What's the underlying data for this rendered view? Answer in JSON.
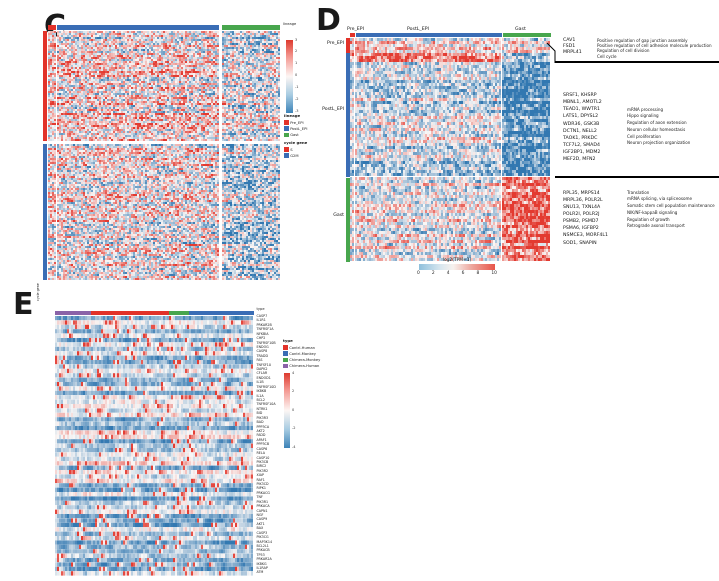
{
  "colors": {
    "anno_red": "#e23229",
    "anno_blue": "#3a6db5",
    "anno_green": "#48a64d",
    "anno_purple": "#8a63a8",
    "heat_red": "#e43c34",
    "heat_blue": "#347ab2"
  },
  "panel_c": {
    "label": "C",
    "top_bar_label": "lineage",
    "bottom_row_label": "cycle gene",
    "colorbar_ticks": [
      "3",
      "2",
      "1",
      "0",
      "-1",
      "-2",
      "-3"
    ],
    "legend_lineage": {
      "title": "lineage",
      "items": [
        {
          "label": "Pre_EPI",
          "color": "#e23229"
        },
        {
          "label": "PostL_EPI",
          "color": "#3a6db5"
        },
        {
          "label": "Gast",
          "color": "#48a64d"
        }
      ]
    },
    "legend_cycle": {
      "title": "cycle gene",
      "items": [
        {
          "label": "S",
          "color": "#e23229"
        },
        {
          "label": "G2M",
          "color": "#3a6db5"
        }
      ]
    }
  },
  "panel_d": {
    "label": "D",
    "col_labels": [
      "Pre_EPI",
      "PostL_EPI",
      "Gast"
    ],
    "row_labels": [
      "Pre_EPI",
      "PostL_EPI",
      "Gast"
    ],
    "colorbar": {
      "title": "log2(TPM+1)",
      "ticks": [
        "0",
        "2",
        "4",
        "6",
        "8",
        "10"
      ]
    },
    "groups": [
      {
        "genes": [
          "CAV1",
          "FSD1",
          "MRPL41"
        ],
        "terms": [
          "Positive regulation of gap junction assembly",
          "Positive regulation of cell adhesion molecule production",
          "Regulation of cell division",
          "Cell cycle"
        ]
      },
      {
        "genes": [
          "SRSF1, KHSRP",
          "MBNL1, AMOTL2",
          "TEAD1, WWTR1",
          "LATS1, DPYSL2",
          "WDR36, GSK3B",
          "DCTN1, NELL2",
          "TAOK1, PRKDC",
          "TCF7L2, SMAD4",
          "IGF2BP1, MDM2",
          "MEF2D, MFN2"
        ],
        "terms": [
          "mRNA processing",
          "Hippo signaling",
          "Regulation of axon extension",
          "Neuron cellular homeostasis",
          "Cell proliferation",
          "Neuron projection organization"
        ]
      },
      {
        "genes": [
          "RPL35, MRPS14",
          "MRPL36, POLR2L",
          "SNU13, TXNL4A",
          "POLR2I, POLR2J",
          "PSMB2, PSMD7",
          "PSMA6, IGFBP2",
          "NSMCE3, MORF4L1",
          "SOD1, SNAPIN"
        ],
        "terms": [
          "Translation",
          "mRNA splicing, via spliceosome",
          "Somatic stem cell population maintenance",
          "NIK/NF-kappaB signaling",
          "Regulation of growth",
          "Retrograde axonal transport"
        ]
      }
    ]
  },
  "panel_e": {
    "label": "E",
    "top_bar_label": "type",
    "colorbar_ticks": [
      "4",
      "2",
      "0",
      "-2",
      "-4"
    ],
    "legend": {
      "title": "type",
      "items": [
        {
          "label": "Contrl-Human",
          "color": "#e23229"
        },
        {
          "label": "Contrl-Monkey",
          "color": "#3a6db5"
        },
        {
          "label": "Chimera-Monkey",
          "color": "#48a64d"
        },
        {
          "label": "Chimera-Human",
          "color": "#8a63a8"
        }
      ]
    },
    "genes": [
      "CASP7",
      "IL1R1",
      "PRKAR2B",
      "TNFRSF1A",
      "NFKBIA",
      "CHP2",
      "TNFRSF10B",
      "ENDOG",
      "CASP8",
      "TRADD",
      "FAS",
      "TNFSF10",
      "DAPK2",
      "CFLAR",
      "ENDOD1",
      "IL1B",
      "TNFRSF10D",
      "IKBKB",
      "IL1A",
      "BCL2",
      "TNFRSF10A",
      "NTRK1",
      "BID",
      "PIK3R3",
      "BAD",
      "PPP3CA",
      "AKT2",
      "FADD",
      "APAF1",
      "PPP3CB",
      "CASP6",
      "RELA",
      "CASP10",
      "PIK3CB",
      "BIRC2",
      "PIK3R2",
      "XIAP",
      "RAF1",
      "PIK3CD",
      "RIPK1",
      "PRKACG",
      "TNF",
      "PIK3R1",
      "PRKACA",
      "CAPN1",
      "NGF",
      "CASP9",
      "AKT1",
      "BAX",
      "CASP3",
      "PIK3CG",
      "MAP3K14",
      "BCL2L1",
      "PRKACB",
      "TP53",
      "PRKAR2A",
      "IKBKG",
      "IL1RAP",
      "ATM"
    ]
  },
  "chart_data": [
    {
      "id": "c",
      "type": "heatmap",
      "panel": "C",
      "description": "Row-scaled (z-score) expression of cell-cycle genes in single cells grouped by lineage",
      "value_range": [
        -3,
        3
      ],
      "colorbar_ticks": [
        3,
        2,
        1,
        0,
        -1,
        -2,
        -3
      ],
      "col_groups": [
        {
          "label": "Pre_EPI",
          "color": "#e23229"
        },
        {
          "label": "PostL_EPI",
          "color": "#3a6db5"
        },
        {
          "label": "Gast",
          "color": "#48a64d"
        }
      ],
      "row_groups": [
        {
          "label": "S",
          "color": "#e23229"
        },
        {
          "label": "G2M",
          "color": "#3a6db5"
        }
      ],
      "legend_position": "right",
      "render": {
        "seed": 11,
        "cw": 2,
        "ch": 2,
        "noise": 0.95,
        "cont": 0.25,
        "cols": [
          {
            "n": 4,
            "gap": 1
          },
          {
            "n": 81,
            "gap": 3
          },
          {
            "n": 29
          }
        ],
        "rows": [
          {
            "n": 55,
            "gap": 3,
            "b": [
              0.2,
              0.12,
              -0.12
            ],
            "j": 0.3
          },
          {
            "n": 68,
            "b": [
              0.12,
              0.03,
              -0.3
            ],
            "j": 0.3
          }
        ]
      }
    },
    {
      "id": "d",
      "type": "heatmap",
      "panel": "D",
      "description": "log2(TPM+1) expression of lineage signature genes; rows and columns grouped by Pre_EPI, PostL_EPI and Gast",
      "value_label": "log2(TPM+1)",
      "value_range": [
        0,
        10
      ],
      "colorbar_ticks": [
        0,
        2,
        4,
        6,
        8,
        10
      ],
      "col_groups": [
        {
          "label": "Pre_EPI",
          "color": "#e23229"
        },
        {
          "label": "PostL_EPI",
          "color": "#3a6db5"
        },
        {
          "label": "Gast",
          "color": "#48a64d"
        }
      ],
      "row_groups": [
        {
          "label": "Pre_EPI",
          "color": "#e23229"
        },
        {
          "label": "PostL_EPI",
          "color": "#3a6db5"
        },
        {
          "label": "Gast",
          "color": "#48a64d"
        }
      ],
      "render": {
        "seed": 7,
        "cw": 2,
        "ch": 3,
        "noise": 0.8,
        "cont": 0.3,
        "cols": [
          {
            "n": 2,
            "gap": 1
          },
          {
            "n": 73,
            "gap": 1
          },
          {
            "n": 24
          }
        ],
        "rows": [
          {
            "n": 5,
            "b": [
              0.35,
              0.08,
              0.02
            ],
            "j": 0.3
          },
          {
            "n": 3,
            "b": [
              0.55,
              0.5,
              -0.55
            ],
            "j": 0.2
          },
          {
            "n": 33,
            "b": [
              -0.18,
              -0.22,
              -0.85
            ],
            "j": 0.35
          },
          {
            "n": 5,
            "gap": 1,
            "b": [
              -0.4,
              -0.42,
              -0.8
            ],
            "j": 0.15
          },
          {
            "n": 28,
            "b": [
              0.02,
              -0.04,
              0.72
            ],
            "j": 0.3
          }
        ]
      }
    },
    {
      "id": "e",
      "type": "heatmap",
      "panel": "E",
      "description": "Scaled expression of apoptosis pathway genes (rows) across cells grouped by sample type",
      "value_range": [
        -4,
        4
      ],
      "colorbar_ticks": [
        4,
        2,
        0,
        -2,
        -4
      ],
      "col_groups": [
        {
          "label": "Chimera-Human",
          "color": "#8a63a8"
        },
        {
          "label": "Contrl-Human",
          "color": "#e23229"
        },
        {
          "label": "Chimera-Monkey",
          "color": "#48a64d"
        },
        {
          "label": "Contrl-Monkey",
          "color": "#3a6db5"
        }
      ],
      "row_labels_from": "panel_e.genes",
      "render": {
        "seed": 23,
        "cw": 2,
        "ch": 4.4,
        "noise": 0.5,
        "cont": 0.45,
        "spike": 0.06,
        "cols": [
          {
            "n": 18
          },
          {
            "n": 39
          },
          {
            "n": 10
          },
          {
            "n": 32
          }
        ],
        "rows": [
          {
            "n": 59,
            "b": [
              -0.3,
              -0.3,
              -0.26,
              -0.3
            ],
            "j": 0.45
          }
        ]
      }
    }
  ]
}
